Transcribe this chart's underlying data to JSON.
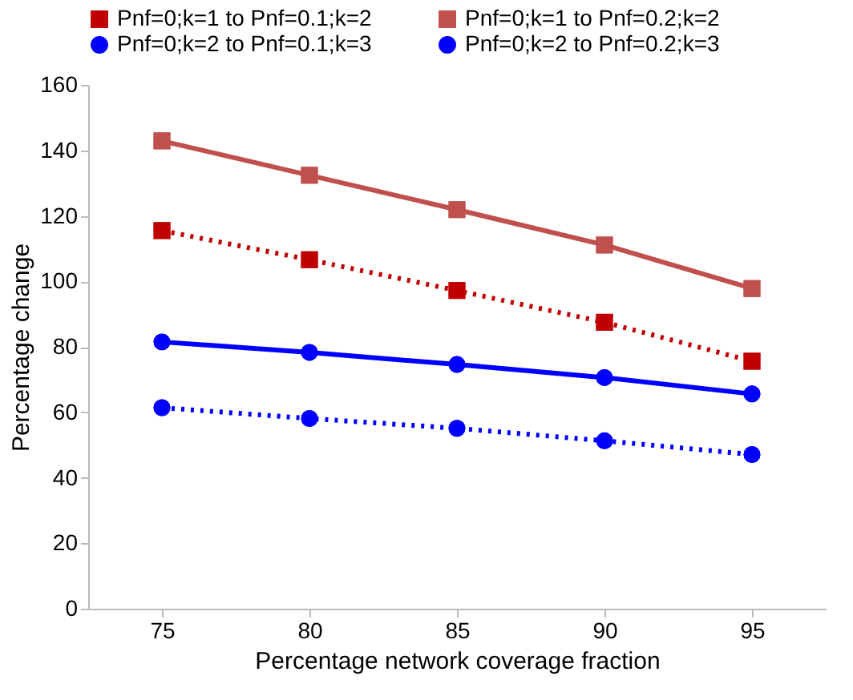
{
  "chart_data": {
    "type": "line",
    "xlabel": "Percentage network coverage fraction",
    "ylabel": "Percentage change",
    "categories": [
      "75",
      "80",
      "85",
      "90",
      "95"
    ],
    "series": [
      {
        "name": "Pnf=0;k=1 to Pnf=0.1;k=2",
        "color": "#c00000",
        "line_style": "dotted",
        "marker": "square",
        "values": [
          115.5,
          106.6,
          97.2,
          87.5,
          75.6
        ]
      },
      {
        "name": "Pnf=0;k=1 to Pnf=0.2;k=2",
        "color": "#c0504d",
        "line_style": "solid",
        "marker": "square",
        "values": [
          142.9,
          132.4,
          121.9,
          111.1,
          97.8
        ]
      },
      {
        "name": "Pnf=0;k=2 to Pnf=0.1;k=3",
        "color": "#0000ff",
        "line_style": "dotted",
        "marker": "circle",
        "values": [
          61.4,
          58.1,
          55.1,
          51.3,
          47.1
        ]
      },
      {
        "name": "Pnf=0;k=2 to Pnf=0.2;k=3",
        "color": "#0000ff",
        "line_style": "solid",
        "marker": "circle",
        "values": [
          81.5,
          78.3,
          74.6,
          70.6,
          65.6
        ]
      }
    ],
    "ylim": [
      0,
      160
    ],
    "yticks": [
      0,
      20,
      40,
      60,
      80,
      100,
      120,
      140,
      160
    ],
    "grid": false,
    "legend": "top"
  }
}
